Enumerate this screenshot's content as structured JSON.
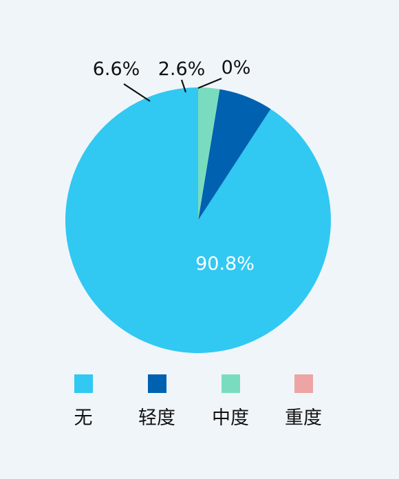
{
  "chart_data": {
    "type": "pie",
    "title": "",
    "slices": [
      {
        "label": "无",
        "value": 90.8,
        "value_label": "90.8%",
        "color": "#31c8f2"
      },
      {
        "label": "轻度",
        "value": 6.6,
        "value_label": "6.6%",
        "color": "#0061b0"
      },
      {
        "label": "中度",
        "value": 2.6,
        "value_label": "2.6%",
        "color": "#7adcbe"
      },
      {
        "label": "重度",
        "value": 0,
        "value_label": "0%",
        "color": "#eda4a4"
      }
    ],
    "legend": {
      "placement": "bottom"
    },
    "start_angle": "12 o'clock",
    "direction": "clockwise"
  }
}
